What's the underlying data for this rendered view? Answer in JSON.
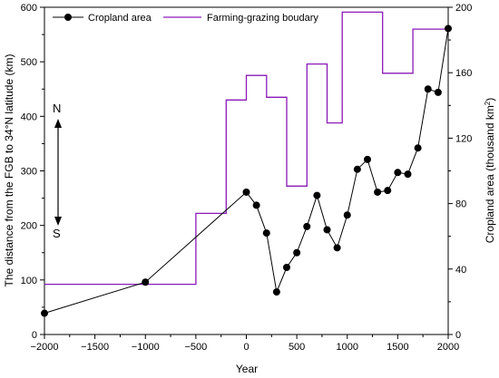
{
  "chart_data": {
    "type": "line",
    "xlabel": "Year",
    "ylabel_left": "The distance from the FGB to 34°N latitude (km)",
    "ylabel_right_main": "Cropland area (thousand km",
    "ylabel_right_sup": "2",
    "ylabel_right_end": ")",
    "xlim": [
      -2000,
      2000
    ],
    "ylim_left": [
      0,
      600
    ],
    "ylim_right": [
      0,
      200
    ],
    "xticks": [
      "-2000",
      "-1500",
      "-1000",
      "-500",
      "0",
      "500",
      "1000",
      "1500",
      "2000"
    ],
    "yticks_left": [
      "0",
      "100",
      "200",
      "300",
      "400",
      "500",
      "600"
    ],
    "yticks_right": [
      "0",
      "40",
      "80",
      "120",
      "160",
      "200"
    ],
    "legend_position": "top",
    "annotation_north": "N",
    "annotation_south": "S",
    "series": [
      {
        "name": "Cropland area",
        "axis": "right",
        "color": "#000000",
        "marker": "circle",
        "x": [
          -2000,
          -1000,
          0,
          100,
          200,
          300,
          400,
          500,
          600,
          700,
          800,
          900,
          1000,
          1100,
          1200,
          1300,
          1400,
          1500,
          1600,
          1700,
          1800,
          1900,
          2000
        ],
        "y": [
          13,
          32,
          87,
          79,
          62,
          26,
          41,
          50,
          66,
          85,
          64,
          53,
          73,
          101,
          107,
          87,
          88,
          99,
          98,
          114,
          150,
          148,
          187
        ]
      },
      {
        "name": "Farming-grazing boudary",
        "axis": "left",
        "color": "#8a1ab8",
        "style": "step",
        "x": [
          -2000,
          -500,
          -500,
          -200,
          -200,
          0,
          0,
          200,
          200,
          400,
          400,
          600,
          600,
          800,
          800,
          950,
          950,
          1350,
          1350,
          1650,
          1650,
          2000
        ],
        "y": [
          92,
          92,
          222,
          222,
          430,
          430,
          475,
          475,
          435,
          435,
          272,
          272,
          496,
          496,
          388,
          388,
          591,
          591,
          479,
          479,
          560,
          560
        ]
      }
    ]
  }
}
